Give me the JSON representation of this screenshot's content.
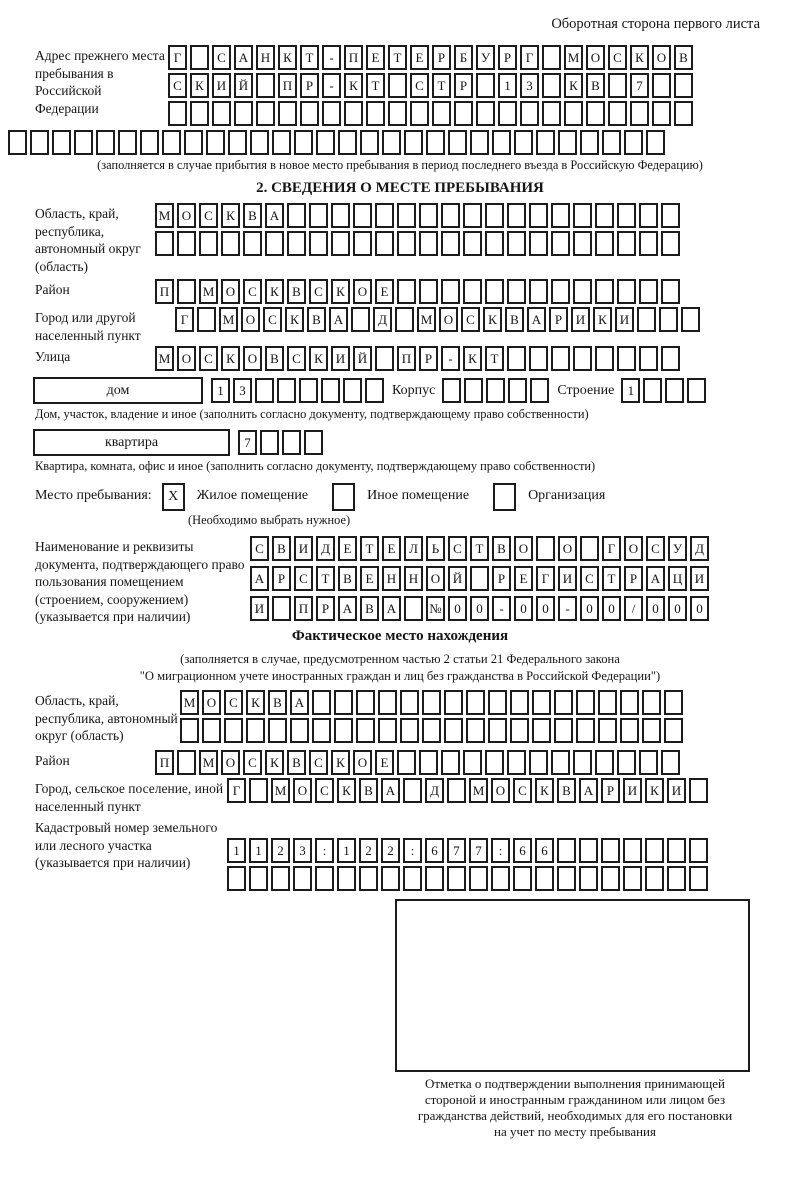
{
  "header": {
    "note": "Оборотная сторона первого листа"
  },
  "prev_address": {
    "label": "Адрес прежнего места пребывания в Российской Федерации",
    "rows": [
      {
        "cells": "Г САНКТ-ПЕТЕРБУРГ МОСКОВ",
        "total": 24
      },
      {
        "cells": "СКИЙ ПР-КТ СТР 13 КВ 7",
        "total": 24
      },
      {
        "cells": "",
        "total": 24
      },
      {
        "cells": "",
        "total": 30
      }
    ],
    "caption": "(заполняется в случае прибытия в новое место пребывания в период последнего въезда в Российскую Федерацию)"
  },
  "section2": {
    "title": "2. СВЕДЕНИЯ О МЕСТЕ ПРЕБЫВАНИЯ",
    "region": {
      "label": "Область, край, республика, автономный округ (область)",
      "rows": [
        {
          "cells": "МОСКВА",
          "total": 24
        },
        {
          "cells": "",
          "total": 24
        }
      ]
    },
    "district": {
      "label": "Район",
      "row": {
        "cells": "П МОСКВСКОЕ",
        "total": 24
      }
    },
    "city": {
      "label": "Город или другой населенный пункт",
      "row": {
        "cells": "Г МОСКВА Д МОСКВАРИКИ",
        "total": 24
      }
    },
    "street": {
      "label": "Улица",
      "row": {
        "cells": "МОСКОВСКИЙ ПР-КТ",
        "total": 24
      }
    },
    "house": {
      "name": "дом",
      "number": {
        "cells": "13",
        "total": 8
      },
      "korpus_label": "Корпус",
      "korpus": {
        "cells": "",
        "total": 5
      },
      "stroenie_label": "Строение",
      "stroenie": {
        "cells": "1",
        "total": 4
      },
      "caption": "Дом, участок, владение и иное (заполнить согласно документу, подтверждающему право собственности)"
    },
    "apartment": {
      "name": "квартира",
      "number": {
        "cells": "7",
        "total": 4
      },
      "caption": "Квартира, комната, офис и иное (заполнить согласно документу, подтверждающему право собственности)"
    },
    "stay_type": {
      "label": "Место пребывания:",
      "options": [
        {
          "label": "Жилое помещение",
          "mark": {
            "cells": "X",
            "total": 1
          }
        },
        {
          "label": "Иное помещение",
          "mark": {
            "cells": "",
            "total": 1
          }
        },
        {
          "label": "Организация",
          "mark": {
            "cells": "",
            "total": 1
          }
        }
      ],
      "caption": "(Необходимо выбрать нужное)"
    },
    "doc": {
      "label": "Наименование и реквизиты документа, подтверждающего право пользования помещением (строением, сооружением) (указывается при наличии)",
      "rows": [
        {
          "cells": "СВИДЕТЕЛЬСТВО О ГОСУД",
          "total": 21
        },
        {
          "cells": "АРСТВЕННОЙ РЕГИСТРАЦИ",
          "total": 21
        },
        {
          "cells": "И ПРАВА №00-00-00/000",
          "total": 21
        }
      ]
    }
  },
  "actual_location": {
    "title": "Фактическое место нахождения",
    "caption_lines": [
      "(заполняется в случае, предусмотренном частью 2 статьи 21 Федерального закона",
      "\"О миграционном учете иностранных граждан и лиц без гражданства в Российской Федерации\")"
    ],
    "region": {
      "label": "Область, край, республика, автономный округ (область)",
      "rows": [
        {
          "cells": "МОСКВА",
          "total": 23
        },
        {
          "cells": "",
          "total": 23
        }
      ]
    },
    "district": {
      "label": "Район",
      "row": {
        "cells": "П МОСКВСКОЕ",
        "total": 24
      }
    },
    "city": {
      "label": "Город, сельское поселение, иной населенный пункт",
      "row": {
        "cells": "Г МОСКВА Д МОСКВАРИКИ",
        "total": 22
      }
    },
    "cadastre": {
      "label": "Кадастровый номер земельного или лесного участка (указывается при наличии)",
      "rows": [
        {
          "cells": "1123:122:677:66",
          "total": 22
        },
        {
          "cells": "",
          "total": 22
        }
      ]
    },
    "stamp_caption_lines": [
      "Отметка о подтверждении выполнения принимающей",
      "стороной и иностранным гражданином или лицом без",
      "гражданства действий, необходимых для его постановки",
      "на учет по месту пребывания"
    ]
  }
}
